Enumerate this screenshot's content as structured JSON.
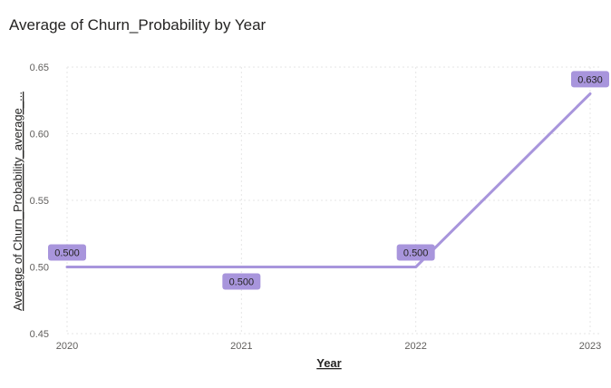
{
  "chart_data": {
    "type": "line",
    "title": "Average of Churn_Probability by Year",
    "xlabel": "Year",
    "ylabel": "Average of Churn_Probability_average_...",
    "categories": [
      "2020",
      "2021",
      "2022",
      "2023"
    ],
    "series": [
      {
        "name": "Average of Churn_Probability",
        "values": [
          0.5,
          0.5,
          0.5,
          0.63
        ],
        "data_labels": [
          "0.500",
          "0.500",
          "0.500",
          "0.630"
        ]
      }
    ],
    "ylim": [
      0.45,
      0.65
    ],
    "yticks": [
      0.45,
      0.5,
      0.55,
      0.6,
      0.65
    ],
    "ytick_labels": [
      "0.45",
      "0.50",
      "0.55",
      "0.60",
      "0.65"
    ],
    "grid": true,
    "legend": "none",
    "label_placement": [
      "above",
      "below",
      "above",
      "above"
    ]
  },
  "colors": {
    "line": "#a895dc",
    "label_fill": "#a895dc",
    "grid": "#e6e6e6"
  }
}
